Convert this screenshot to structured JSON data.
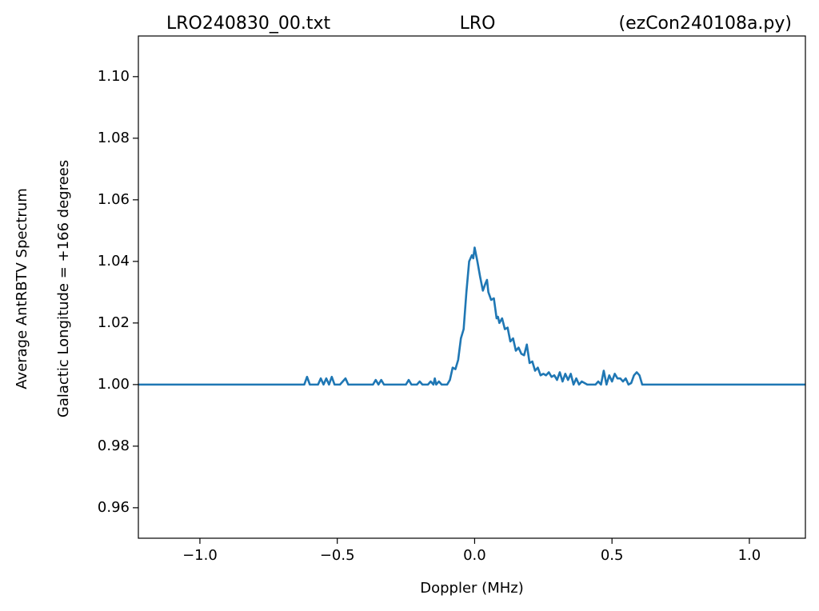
{
  "chart_data": {
    "type": "line",
    "title": [
      "LRO240830_00.txt",
      "LRO",
      "(ezCon240108a.py)"
    ],
    "x_label": "Doppler (MHz)",
    "y_label": [
      "Average AntRBTV Spectrum",
      "Galactic Longitude = +166 degrees"
    ],
    "xlim": [
      -1.224,
      1.204
    ],
    "ylim": [
      0.9501,
      1.1132
    ],
    "xticks": [
      {
        "value": -1.0,
        "label": "−1.0"
      },
      {
        "value": -0.5,
        "label": "−0.5"
      },
      {
        "value": 0.0,
        "label": "0.0"
      },
      {
        "value": 0.5,
        "label": "0.5"
      },
      {
        "value": 1.0,
        "label": "1.0"
      }
    ],
    "yticks": [
      {
        "value": 0.96,
        "label": "0.96"
      },
      {
        "value": 0.98,
        "label": "0.98"
      },
      {
        "value": 1.0,
        "label": "1.00"
      },
      {
        "value": 1.02,
        "label": "1.02"
      },
      {
        "value": 1.04,
        "label": "1.04"
      },
      {
        "value": 1.06,
        "label": "1.06"
      },
      {
        "value": 1.08,
        "label": "1.08"
      },
      {
        "value": 1.1,
        "label": "1.10"
      }
    ],
    "grid": false,
    "series": [
      {
        "color": "#1f77b4",
        "x": [
          -1.224,
          -0.62,
          -0.61,
          -0.6,
          -0.57,
          -0.56,
          -0.55,
          -0.54,
          -0.53,
          -0.52,
          -0.51,
          -0.49,
          -0.47,
          -0.46,
          -0.37,
          -0.36,
          -0.35,
          -0.34,
          -0.33,
          -0.25,
          -0.24,
          -0.23,
          -0.21,
          -0.2,
          -0.19,
          -0.17,
          -0.16,
          -0.15,
          -0.145,
          -0.14,
          -0.13,
          -0.12,
          -0.1,
          -0.09,
          -0.08,
          -0.07,
          -0.06,
          -0.05,
          -0.04,
          -0.03,
          -0.02,
          -0.01,
          -0.005,
          0.0,
          0.01,
          0.02,
          0.03,
          0.04,
          0.045,
          0.05,
          0.06,
          0.07,
          0.08,
          0.085,
          0.09,
          0.1,
          0.11,
          0.12,
          0.13,
          0.14,
          0.15,
          0.16,
          0.17,
          0.18,
          0.19,
          0.2,
          0.21,
          0.22,
          0.23,
          0.24,
          0.25,
          0.26,
          0.27,
          0.28,
          0.29,
          0.3,
          0.31,
          0.32,
          0.33,
          0.34,
          0.35,
          0.36,
          0.37,
          0.38,
          0.39,
          0.41,
          0.44,
          0.45,
          0.46,
          0.47,
          0.48,
          0.49,
          0.5,
          0.51,
          0.52,
          0.53,
          0.54,
          0.55,
          0.56,
          0.57,
          0.58,
          0.59,
          0.6,
          0.61,
          1.204
        ],
        "values": [
          1.0,
          1.0,
          1.0025,
          1.0,
          1.0,
          1.002,
          1.0,
          1.002,
          1.0,
          1.0025,
          1.0,
          1.0,
          1.002,
          1.0,
          1.0,
          1.0015,
          1.0,
          1.0015,
          1.0,
          1.0,
          1.0015,
          1.0,
          1.0,
          1.001,
          1.0,
          1.0,
          1.001,
          1.0,
          1.002,
          1.0,
          1.001,
          1.0,
          1.0,
          1.0015,
          1.0055,
          1.005,
          1.008,
          1.015,
          1.018,
          1.03,
          1.04,
          1.042,
          1.041,
          1.0445,
          1.04,
          1.035,
          1.0305,
          1.033,
          1.034,
          1.03,
          1.0275,
          1.028,
          1.0215,
          1.022,
          1.02,
          1.0215,
          1.018,
          1.0185,
          1.014,
          1.015,
          1.011,
          1.012,
          1.01,
          1.0095,
          1.013,
          1.007,
          1.0075,
          1.0045,
          1.0055,
          1.003,
          1.0035,
          1.003,
          1.004,
          1.0025,
          1.003,
          1.0015,
          1.004,
          1.001,
          1.0035,
          1.0015,
          1.0035,
          1.0,
          1.002,
          1.0,
          1.001,
          1.0,
          1.0,
          1.001,
          1.0,
          1.0045,
          1.0,
          1.003,
          1.001,
          1.0035,
          1.002,
          1.002,
          1.001,
          1.002,
          1.0,
          1.0005,
          1.003,
          1.004,
          1.003,
          1.0,
          1.0
        ]
      }
    ]
  }
}
